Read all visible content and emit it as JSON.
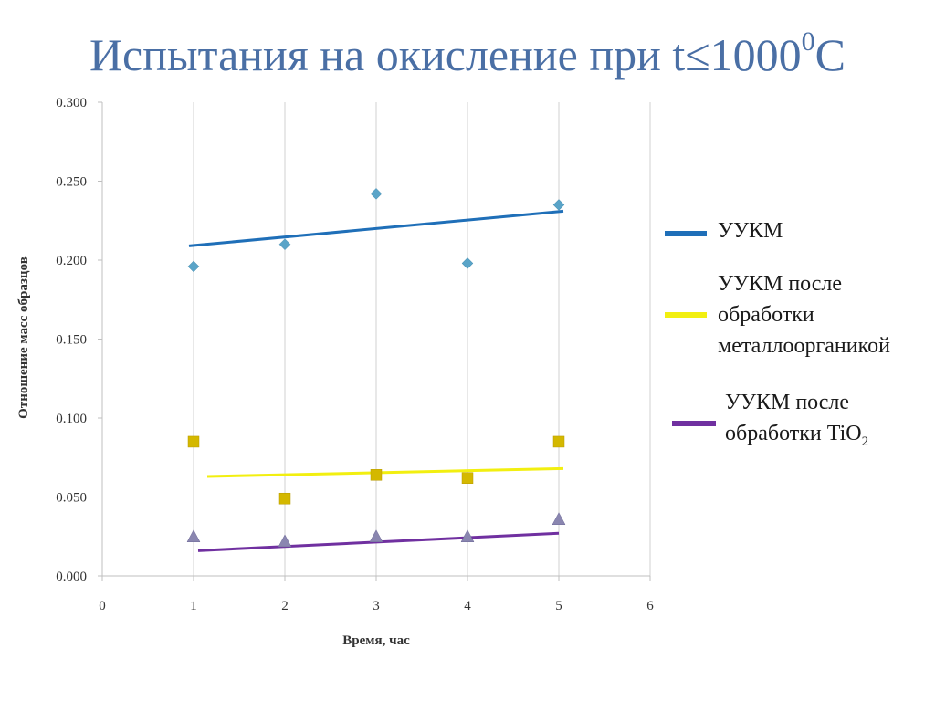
{
  "slide": {
    "title": "Испытания на окисление при t≤1000",
    "title_sup": "0",
    "title_end": "С"
  },
  "chart_data": {
    "type": "scatter",
    "title": "",
    "xlabel": "Время, час",
    "ylabel": "Отношение масс образцов",
    "xlim": [
      0,
      6
    ],
    "ylim": [
      0,
      0.3
    ],
    "x_ticks": [
      "0",
      "1",
      "2",
      "3",
      "4",
      "5",
      "6"
    ],
    "y_ticks": [
      "0.000",
      "0.050",
      "0.100",
      "0.150",
      "0.200",
      "0.250",
      "0.300"
    ],
    "grid": "vertical",
    "legend_position": "right",
    "series": [
      {
        "name": "УУКМ",
        "marker": "diamond",
        "color": "#1f6fb8",
        "marker_color": "#5aa4c8",
        "x": [
          1,
          2,
          3,
          4,
          5
        ],
        "y": [
          0.196,
          0.21,
          0.242,
          0.198,
          0.235
        ],
        "trendline": {
          "x": [
            0.95,
            5.05
          ],
          "y": [
            0.209,
            0.231
          ]
        }
      },
      {
        "name": "УУКМ после обработки металлоорганикой",
        "marker": "square",
        "color": "#f2ef10",
        "marker_color": "#d4b800",
        "x": [
          1,
          2,
          3,
          4,
          5
        ],
        "y": [
          0.085,
          0.049,
          0.064,
          0.062,
          0.085
        ],
        "trendline": {
          "x": [
            1.15,
            5.05
          ],
          "y": [
            0.063,
            0.068
          ]
        }
      },
      {
        "name": "УУКМ после обработки TiO2",
        "marker": "triangle",
        "color": "#7030a0",
        "marker_color": "#8a86b0",
        "x": [
          1,
          2,
          3,
          4,
          5
        ],
        "y": [
          0.025,
          0.022,
          0.025,
          0.025,
          0.036
        ],
        "trendline": {
          "x": [
            1.05,
            5.0
          ],
          "y": [
            0.016,
            0.027
          ]
        }
      }
    ]
  },
  "legend": {
    "items": [
      {
        "lines": [
          "УУКМ"
        ],
        "color": "#1f6fb8"
      },
      {
        "lines": [
          "УУКМ после",
          "обработки",
          "металлоорганикой"
        ],
        "color": "#f2ef10"
      },
      {
        "lines": [
          "УУКМ после",
          "обработки TiO"
        ],
        "subscript": "2",
        "color": "#7030a0"
      }
    ]
  }
}
